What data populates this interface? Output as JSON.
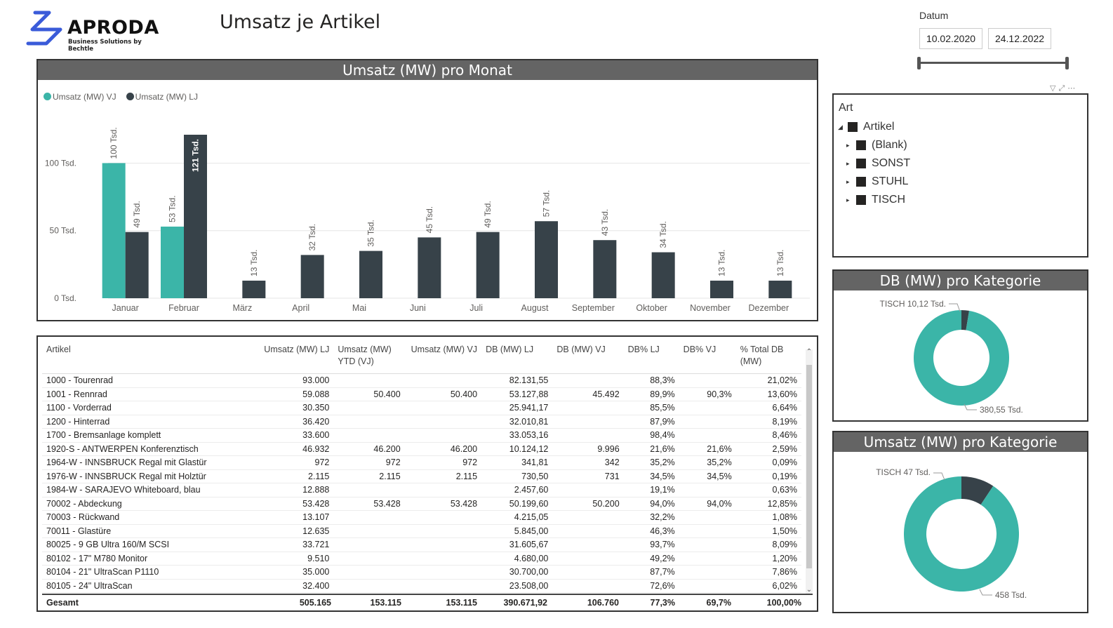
{
  "brand": {
    "name": "APRODA",
    "tagline": "Business Solutions by Bechtle"
  },
  "page": {
    "title": "Umsatz je Artikel"
  },
  "date_filter": {
    "label": "Datum",
    "from": "10.02.2020",
    "to": "24.12.2022"
  },
  "bar_chart": {
    "title": "Umsatz (MW) pro Monat",
    "legend": [
      "Umsatz (MW) VJ",
      "Umsatz (MW) LJ"
    ],
    "y_ticks": [
      "100 Tsd.",
      "50 Tsd.",
      "0 Tsd."
    ]
  },
  "chart_data": [
    {
      "type": "bar",
      "title": "Umsatz (MW) pro Monat",
      "categories": [
        "Januar",
        "Februar",
        "März",
        "April",
        "Mai",
        "Juni",
        "Juli",
        "August",
        "September",
        "Oktober",
        "November",
        "Dezember"
      ],
      "series": [
        {
          "name": "Umsatz (MW) VJ",
          "color": "#3bb5a8",
          "values": [
            100,
            53,
            null,
            null,
            null,
            null,
            null,
            null,
            null,
            null,
            null,
            null
          ],
          "labels": [
            "100 Tsd.",
            "53 Tsd.",
            "",
            "",
            "",
            "",
            "",
            "",
            "",
            "",
            "",
            ""
          ]
        },
        {
          "name": "Umsatz (MW) LJ",
          "color": "#374249",
          "values": [
            49,
            121,
            13,
            32,
            35,
            45,
            49,
            57,
            43,
            34,
            13,
            13
          ],
          "labels": [
            "49 Tsd.",
            "121 Tsd.",
            "13 Tsd.",
            "32 Tsd.",
            "35 Tsd.",
            "45 Tsd.",
            "49 Tsd.",
            "57 Tsd.",
            "43 Tsd.",
            "34 Tsd.",
            "13 Tsd.",
            "13 Tsd."
          ]
        }
      ],
      "ylim": [
        0,
        121
      ],
      "y_ticks": [
        0,
        50,
        100
      ],
      "legend_position": "top-left",
      "grid": true
    },
    {
      "type": "pie",
      "title": "DB (MW) pro Kategorie",
      "slices": [
        {
          "label": "TISCH 10,12 Tsd.",
          "value": 10.12,
          "color": "#374249"
        },
        {
          "label": "380,55 Tsd.",
          "value": 380.55,
          "color": "#3bb5a8"
        }
      ]
    },
    {
      "type": "pie",
      "title": "Umsatz (MW) pro Kategorie",
      "slices": [
        {
          "label": "TISCH 47 Tsd.",
          "value": 47,
          "color": "#374249"
        },
        {
          "label": "458 Tsd.",
          "value": 458,
          "color": "#3bb5a8"
        }
      ]
    }
  ],
  "table": {
    "columns": [
      "Artikel",
      "Umsatz (MW) LJ",
      "Umsatz (MW) YTD (VJ)",
      "Umsatz (MW) VJ",
      "DB (MW) LJ",
      "DB (MW) VJ",
      "DB% LJ",
      "DB% VJ",
      "% Total DB (MW)"
    ],
    "rows": [
      [
        "1000 - Tourenrad",
        "93.000",
        "",
        "",
        "82.131,55",
        "",
        "88,3%",
        "",
        "21,02%"
      ],
      [
        "1001 - Rennrad",
        "59.088",
        "50.400",
        "50.400",
        "53.127,88",
        "45.492",
        "89,9%",
        "90,3%",
        "13,60%"
      ],
      [
        "1100 - Vorderrad",
        "30.350",
        "",
        "",
        "25.941,17",
        "",
        "85,5%",
        "",
        "6,64%"
      ],
      [
        "1200 - Hinterrad",
        "36.420",
        "",
        "",
        "32.010,81",
        "",
        "87,9%",
        "",
        "8,19%"
      ],
      [
        "1700 - Bremsanlage komplett",
        "33.600",
        "",
        "",
        "33.053,16",
        "",
        "98,4%",
        "",
        "8,46%"
      ],
      [
        "1920-S - ANTWERPEN Konferenztisch",
        "46.932",
        "46.200",
        "46.200",
        "10.124,12",
        "9.996",
        "21,6%",
        "21,6%",
        "2,59%"
      ],
      [
        "1964-W - INNSBRUCK Regal mit Glastür",
        "972",
        "972",
        "972",
        "341,81",
        "342",
        "35,2%",
        "35,2%",
        "0,09%"
      ],
      [
        "1976-W - INNSBRUCK Regal mit Holztür",
        "2.115",
        "2.115",
        "2.115",
        "730,50",
        "731",
        "34,5%",
        "34,5%",
        "0,19%"
      ],
      [
        "1984-W - SARAJEVO Whiteboard, blau",
        "12.888",
        "",
        "",
        "2.457,60",
        "",
        "19,1%",
        "",
        "0,63%"
      ],
      [
        "70002 - Abdeckung",
        "53.428",
        "53.428",
        "53.428",
        "50.199,60",
        "50.200",
        "94,0%",
        "94,0%",
        "12,85%"
      ],
      [
        "70003 - Rückwand",
        "13.107",
        "",
        "",
        "4.215,05",
        "",
        "32,2%",
        "",
        "1,08%"
      ],
      [
        "70011 - Glastüre",
        "12.635",
        "",
        "",
        "5.845,00",
        "",
        "46,3%",
        "",
        "1,50%"
      ],
      [
        "80025 - 9 GB Ultra 160/M SCSI",
        "33.721",
        "",
        "",
        "31.605,67",
        "",
        "93,7%",
        "",
        "8,09%"
      ],
      [
        "80102 - 17\" M780 Monitor",
        "9.510",
        "",
        "",
        "4.680,00",
        "",
        "49,2%",
        "",
        "1,20%"
      ],
      [
        "80104 - 21\" UltraScan P1110",
        "35.000",
        "",
        "",
        "30.700,00",
        "",
        "87,7%",
        "",
        "7,86%"
      ],
      [
        "80105 - 24\" UltraScan",
        "32.400",
        "",
        "",
        "23.508,00",
        "",
        "72,6%",
        "",
        "6,02%"
      ]
    ],
    "total": [
      "Gesamt",
      "505.165",
      "153.115",
      "153.115",
      "390.671,92",
      "106.760",
      "77,3%",
      "69,7%",
      "100,00%"
    ]
  },
  "slicer": {
    "title": "Art",
    "root": "Artikel",
    "items": [
      "(Blank)",
      "SONST",
      "STUHL",
      "TISCH"
    ]
  },
  "donut_db": {
    "title": "DB (MW) pro Kategorie",
    "label_small": "TISCH 10,12 Tsd.",
    "label_large": "380,55 Tsd."
  },
  "donut_umsatz": {
    "title": "Umsatz (MW) pro Kategorie",
    "label_small": "TISCH 47 Tsd.",
    "label_large": "458 Tsd."
  },
  "colors": {
    "teal": "#3bb5a8",
    "dark": "#374249",
    "header": "#646464",
    "logo_blue": "#3a5bd9"
  }
}
